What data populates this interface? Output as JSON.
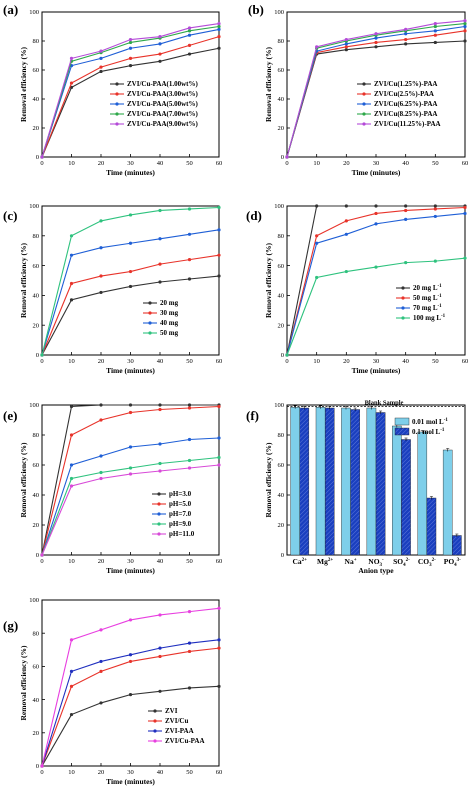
{
  "chart_data": [
    {
      "panel": "(a)",
      "type": "line",
      "x": [
        0,
        10,
        20,
        30,
        40,
        50,
        60
      ],
      "xlabel": "Time (minutes)",
      "ylabel": "Removal efficiency (%)",
      "ylim": [
        0,
        100
      ],
      "xlim": [
        0,
        60
      ],
      "legend": "lower-right",
      "series": [
        {
          "name": "ZVI/Cu-PAA(1.00wt%)",
          "color": "#333333",
          "values": [
            0,
            48,
            59,
            63,
            66,
            71,
            75
          ]
        },
        {
          "name": "ZVI/Cu-PAA(3.00wt%)",
          "color": "#e8332a",
          "values": [
            0,
            51,
            62,
            68,
            71,
            77,
            83
          ]
        },
        {
          "name": "ZVI/Cu-PAA(5.00wt%)",
          "color": "#1f5fd6",
          "values": [
            0,
            63,
            68,
            75,
            78,
            84,
            88
          ]
        },
        {
          "name": "ZVI/Cu-PAA(7.00wt%)",
          "color": "#2ea84a",
          "values": [
            0,
            66,
            72,
            79,
            82,
            87,
            90
          ]
        },
        {
          "name": "ZVI/Cu-PAA(9.00wt%)",
          "color": "#b44ad8",
          "values": [
            0,
            68,
            73,
            81,
            83,
            89,
            92
          ]
        }
      ]
    },
    {
      "panel": "(b)",
      "type": "line",
      "x": [
        0,
        10,
        20,
        30,
        40,
        50,
        60
      ],
      "xlabel": "Time (minutes)",
      "ylabel": "Removal efficiency (%)",
      "ylim": [
        0,
        100
      ],
      "xlim": [
        0,
        60
      ],
      "legend": "lower-right",
      "series": [
        {
          "name": "ZVI/Cu(1.25%)-PAA",
          "color": "#333333",
          "values": [
            0,
            71,
            74,
            76,
            78,
            79,
            80
          ]
        },
        {
          "name": "ZVI/Cu(2.5%)-PAA",
          "color": "#e8332a",
          "values": [
            0,
            72,
            76,
            79,
            81,
            84,
            87
          ]
        },
        {
          "name": "ZVI/Cu(6.25%)-PAA",
          "color": "#1f5fd6",
          "values": [
            0,
            73,
            78,
            82,
            85,
            87,
            90
          ]
        },
        {
          "name": "ZVI/Cu(8.25%)-PAA",
          "color": "#2ea84a",
          "values": [
            0,
            75,
            80,
            84,
            87,
            90,
            92
          ]
        },
        {
          "name": "ZVI/Cu(11.25%)-PAA",
          "color": "#b44ad8",
          "values": [
            0,
            76,
            81,
            85,
            88,
            92,
            94
          ]
        }
      ]
    },
    {
      "panel": "(c)",
      "type": "line",
      "x": [
        0,
        10,
        20,
        30,
        40,
        50,
        60
      ],
      "xlabel": "Time (minutes)",
      "ylabel": "Removal efficiency (%)",
      "ylim": [
        0,
        100
      ],
      "xlim": [
        0,
        60
      ],
      "legend": "lower-right",
      "series": [
        {
          "name": "20 mg",
          "color": "#333333",
          "values": [
            0,
            37,
            42,
            46,
            49,
            51,
            53
          ]
        },
        {
          "name": "30 mg",
          "color": "#e8332a",
          "values": [
            0,
            48,
            53,
            56,
            61,
            64,
            67
          ]
        },
        {
          "name": "40 mg",
          "color": "#1f5fd6",
          "values": [
            0,
            67,
            72,
            75,
            78,
            81,
            84
          ]
        },
        {
          "name": "50 mg",
          "color": "#2ec27e",
          "values": [
            0,
            80,
            90,
            94,
            97,
            98,
            99
          ]
        }
      ]
    },
    {
      "panel": "(d)",
      "type": "line",
      "x": [
        0,
        10,
        20,
        30,
        40,
        50,
        60
      ],
      "xlabel": "Time (minutes)",
      "ylabel": "Removal efficiency (%)",
      "ylim": [
        0,
        100
      ],
      "xlim": [
        0,
        60
      ],
      "legend": "lower-right",
      "series": [
        {
          "name": "20 mg L",
          "color": "#333333",
          "values": [
            0,
            100,
            100,
            100,
            100,
            100,
            100
          ]
        },
        {
          "name": "50 mg L",
          "color": "#e8332a",
          "values": [
            0,
            80,
            90,
            95,
            97,
            98,
            99
          ]
        },
        {
          "name": "70 mg L",
          "color": "#1f5fd6",
          "values": [
            0,
            75,
            81,
            88,
            91,
            93,
            95
          ]
        },
        {
          "name": "100 mg L",
          "color": "#2ec27e",
          "values": [
            0,
            52,
            56,
            59,
            62,
            63,
            65
          ]
        }
      ],
      "legend_superscript": "-1"
    },
    {
      "panel": "(e)",
      "type": "line",
      "x": [
        0,
        10,
        20,
        30,
        40,
        50,
        60
      ],
      "xlabel": "Time (minutes)",
      "ylabel": "Removal efficiency (%)",
      "ylim": [
        0,
        100
      ],
      "xlim": [
        0,
        60
      ],
      "legend": "lower-right",
      "series": [
        {
          "name": "pH=3.0",
          "color": "#333333",
          "values": [
            0,
            99,
            100,
            100,
            100,
            100,
            100
          ]
        },
        {
          "name": "pH=5.0",
          "color": "#e8332a",
          "values": [
            0,
            80,
            90,
            95,
            97,
            98,
            99
          ]
        },
        {
          "name": "pH=7.0",
          "color": "#1f5fd6",
          "values": [
            0,
            60,
            66,
            72,
            74,
            77,
            78
          ]
        },
        {
          "name": "pH=9.0",
          "color": "#2ec27e",
          "values": [
            0,
            51,
            55,
            58,
            61,
            63,
            65
          ]
        },
        {
          "name": "pH=11.0",
          "color": "#d84ad8",
          "values": [
            0,
            46,
            51,
            54,
            56,
            58,
            60
          ]
        }
      ]
    },
    {
      "panel": "(f)",
      "type": "bar",
      "xlabel": "Anion type",
      "ylabel": "Removal efficiency (%)",
      "ylim": [
        0,
        100
      ],
      "legend": "top-right",
      "annotation": "Blank Sample",
      "reference_line": 99,
      "categories": [
        {
          "base": "Ca",
          "sup": "2+",
          "sub": ""
        },
        {
          "base": "Mg",
          "sup": "2+",
          "sub": ""
        },
        {
          "base": "Na",
          "sup": "+",
          "sub": ""
        },
        {
          "base": "NO",
          "sup": "-",
          "sub": "3"
        },
        {
          "base": "SO",
          "sup": "2-",
          "sub": "4"
        },
        {
          "base": "CO",
          "sup": "2-",
          "sub": "3"
        },
        {
          "base": "PO",
          "sup": "3-",
          "sub": "4"
        }
      ],
      "series": [
        {
          "name": "0.01 mol L",
          "sup": "-1",
          "color": "#7ecfea",
          "values": [
            98.5,
            98.5,
            98,
            98,
            86,
            82,
            70
          ]
        },
        {
          "name": "0.1 mol L",
          "sup": "-1",
          "color": "#1a3fbf",
          "values": [
            98,
            98,
            97,
            95,
            77,
            38,
            13
          ]
        }
      ]
    },
    {
      "panel": "(g)",
      "type": "line",
      "x": [
        0,
        10,
        20,
        30,
        40,
        50,
        60
      ],
      "xlabel": "Time (minutes)",
      "ylabel": "Removal efficiency (%)",
      "ylim": [
        0,
        100
      ],
      "xlim": [
        0,
        60
      ],
      "legend": "lower-right",
      "series": [
        {
          "name": "ZVI",
          "color": "#333333",
          "values": [
            0,
            31,
            38,
            43,
            45,
            47,
            48
          ]
        },
        {
          "name": "ZVI/Cu",
          "color": "#e8332a",
          "values": [
            0,
            48,
            57,
            63,
            66,
            69,
            71
          ]
        },
        {
          "name": "ZVI-PAA",
          "color": "#1f2fbf",
          "values": [
            0,
            57,
            63,
            67,
            71,
            74,
            76
          ]
        },
        {
          "name": "ZVI/Cu-PAA",
          "color": "#e83fe0",
          "values": [
            0,
            76,
            82,
            88,
            91,
            93,
            95
          ]
        }
      ]
    }
  ]
}
